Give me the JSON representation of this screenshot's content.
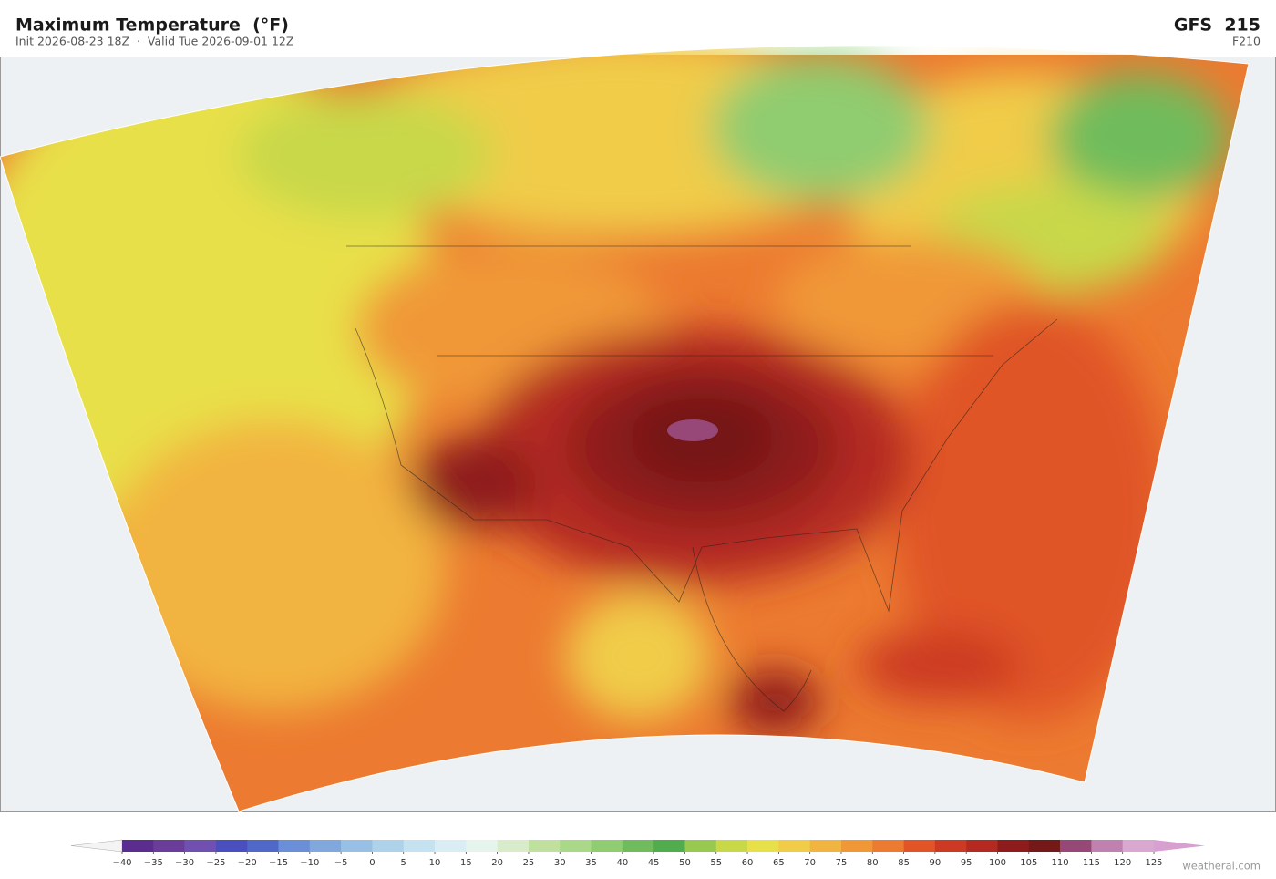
{
  "header": {
    "title": "Maximum Temperature  (°F)",
    "subtitle": "Init 2026-08-23 18Z  ·  Valid Tue 2026-09-01 12Z",
    "model": "GFS  215",
    "forecast_hour": "F210"
  },
  "colorbar": {
    "ticks": [
      {
        "value": -40,
        "label": "−40"
      },
      {
        "value": -35,
        "label": "−35"
      },
      {
        "value": -30,
        "label": "−30"
      },
      {
        "value": -25,
        "label": "−25"
      },
      {
        "value": -20,
        "label": "−20"
      },
      {
        "value": -15,
        "label": "−15"
      },
      {
        "value": -10,
        "label": "−10"
      },
      {
        "value": -5,
        "label": "−5"
      },
      0,
      5,
      10,
      15,
      20,
      25,
      30,
      35,
      40,
      45,
      50,
      55,
      60,
      65,
      70,
      75,
      80,
      85,
      90,
      95,
      100,
      105,
      110,
      115,
      120,
      125
    ],
    "colors": [
      "#5b2d8e",
      "#6a3d9a",
      "#7050b0",
      "#4a4fc0",
      "#5068c8",
      "#6a8fd8",
      "#80a8dc",
      "#98c0e4",
      "#aed2ea",
      "#c4e2f0",
      "#d8eef4",
      "#e6f4ee",
      "#d8eccc",
      "#c0e0a0",
      "#a8d888",
      "#90cc70",
      "#70bc5c",
      "#50ac4c",
      "#98c850",
      "#c8d848",
      "#e8e048",
      "#f0cc48",
      "#f2b440",
      "#f09838",
      "#ec7a30",
      "#e05428",
      "#cc3a24",
      "#b42a20",
      "#8e1c1c",
      "#741818",
      "#984878",
      "#c080b0",
      "#d8a8d0"
    ],
    "under_color": "#f4f4f4",
    "over_color": "#d8a0d0"
  },
  "footer": {
    "credit": "weatherai.com"
  }
}
